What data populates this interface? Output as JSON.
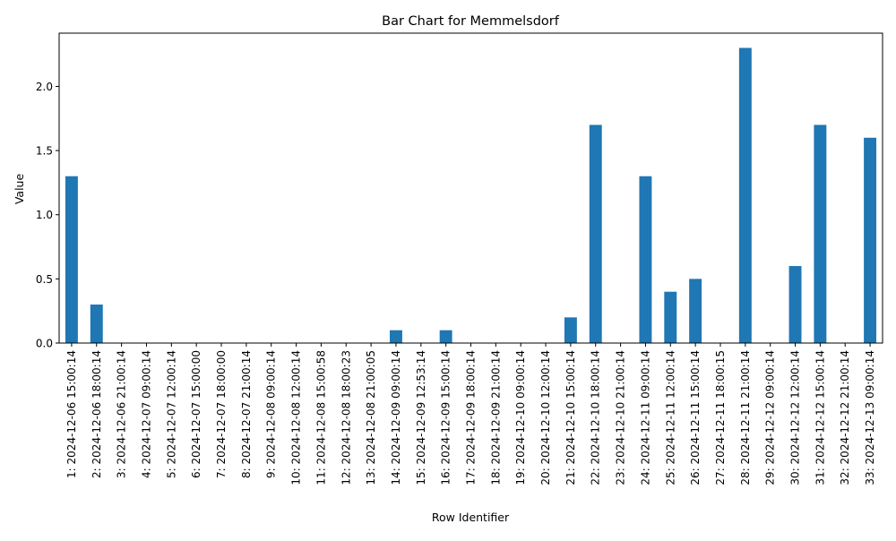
{
  "chart_data": {
    "type": "bar",
    "title": "Bar Chart for Memmelsdorf",
    "xlabel": "Row Identifier",
    "ylabel": "Value",
    "ylim": [
      0,
      2.415
    ],
    "yticks": [
      "0.0",
      "0.5",
      "1.0",
      "1.5",
      "2.0"
    ],
    "ytick_values": [
      0,
      0.5,
      1.0,
      1.5,
      2.0
    ],
    "grid": false,
    "bar_color": "#1f77b4",
    "categories": [
      "1: 2024-12-06 15:00:14",
      "2: 2024-12-06 18:00:14",
      "3: 2024-12-06 21:00:14",
      "4: 2024-12-07 09:00:14",
      "5: 2024-12-07 12:00:14",
      "6: 2024-12-07 15:00:00",
      "7: 2024-12-07 18:00:00",
      "8: 2024-12-07 21:00:14",
      "9: 2024-12-08 09:00:14",
      "10: 2024-12-08 12:00:14",
      "11: 2024-12-08 15:00:58",
      "12: 2024-12-08 18:00:23",
      "13: 2024-12-08 21:00:05",
      "14: 2024-12-09 09:00:14",
      "15: 2024-12-09 12:53:14",
      "16: 2024-12-09 15:00:14",
      "17: 2024-12-09 18:00:14",
      "18: 2024-12-09 21:00:14",
      "19: 2024-12-10 09:00:14",
      "20: 2024-12-10 12:00:14",
      "21: 2024-12-10 15:00:14",
      "22: 2024-12-10 18:00:14",
      "23: 2024-12-10 21:00:14",
      "24: 2024-12-11 09:00:14",
      "25: 2024-12-11 12:00:14",
      "26: 2024-12-11 15:00:14",
      "27: 2024-12-11 18:00:15",
      "28: 2024-12-11 21:00:14",
      "29: 2024-12-12 09:00:14",
      "30: 2024-12-12 12:00:14",
      "31: 2024-12-12 15:00:14",
      "32: 2024-12-12 21:00:14",
      "33: 2024-12-13 09:00:14"
    ],
    "values": [
      1.3,
      0.3,
      0,
      0,
      0,
      0,
      0,
      0,
      0,
      0,
      0,
      0,
      0,
      0.1,
      0,
      0.1,
      0,
      0,
      0,
      0,
      0.2,
      1.7,
      0,
      1.3,
      0.4,
      0.5,
      0,
      2.3,
      0,
      0.6,
      1.7,
      0,
      1.6
    ]
  }
}
